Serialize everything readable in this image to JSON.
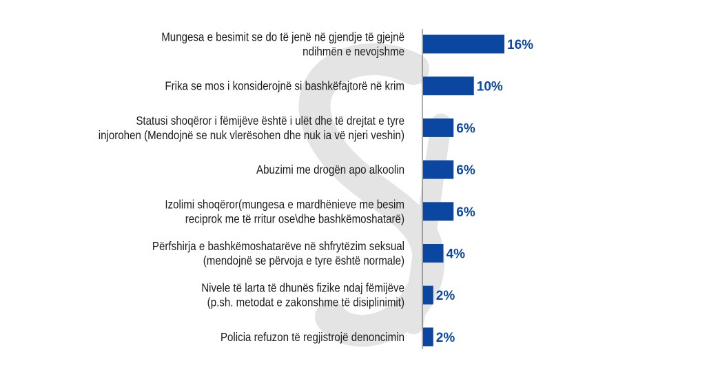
{
  "chart_data": {
    "type": "bar",
    "orientation": "horizontal",
    "title": "",
    "xlabel": "",
    "ylabel": "",
    "xlim": [
      0,
      16
    ],
    "grid": false,
    "value_suffix": "%",
    "bar_color": "#0b47a1",
    "watermark": "Si",
    "categories": [
      [
        "Mungesa e besimit se do të jenë në gjendje të gjejnë",
        "ndihmën e nevojshme"
      ],
      [
        "Frika se mos i konsiderojnë si bashkëfajtorë në krim"
      ],
      [
        "Statusi shoqëror i fëmijëve është i ulët dhe të drejtat e tyre",
        "injorohen (Mendojnë se nuk vlerësohen dhe nuk ia vë njeri veshin)"
      ],
      [
        "Abuzimi me drogën apo alkoolin"
      ],
      [
        "Izolimi shoqëror(mungesa e mardhënieve me besim",
        "reciprok me të rritur ose\\dhe bashkëmoshatarë)"
      ],
      [
        "Përfshirja e bashkëmoshatarëve në shfrytëzim seksual",
        "(mendojnë se përvoja e tyre është normale)"
      ],
      [
        "Nivele të larta të dhunës fizike ndaj fëmijëve",
        "(p.sh. metodat e zakonshme të disiplinimit)"
      ],
      [
        "Policia refuzon të regjistrojë denoncimin"
      ]
    ],
    "values": [
      16,
      10,
      6,
      6,
      6,
      4,
      2,
      2
    ],
    "labels": [
      "16%",
      "10%",
      "6%",
      "6%",
      "6%",
      "4%",
      "2%",
      "2%"
    ]
  }
}
